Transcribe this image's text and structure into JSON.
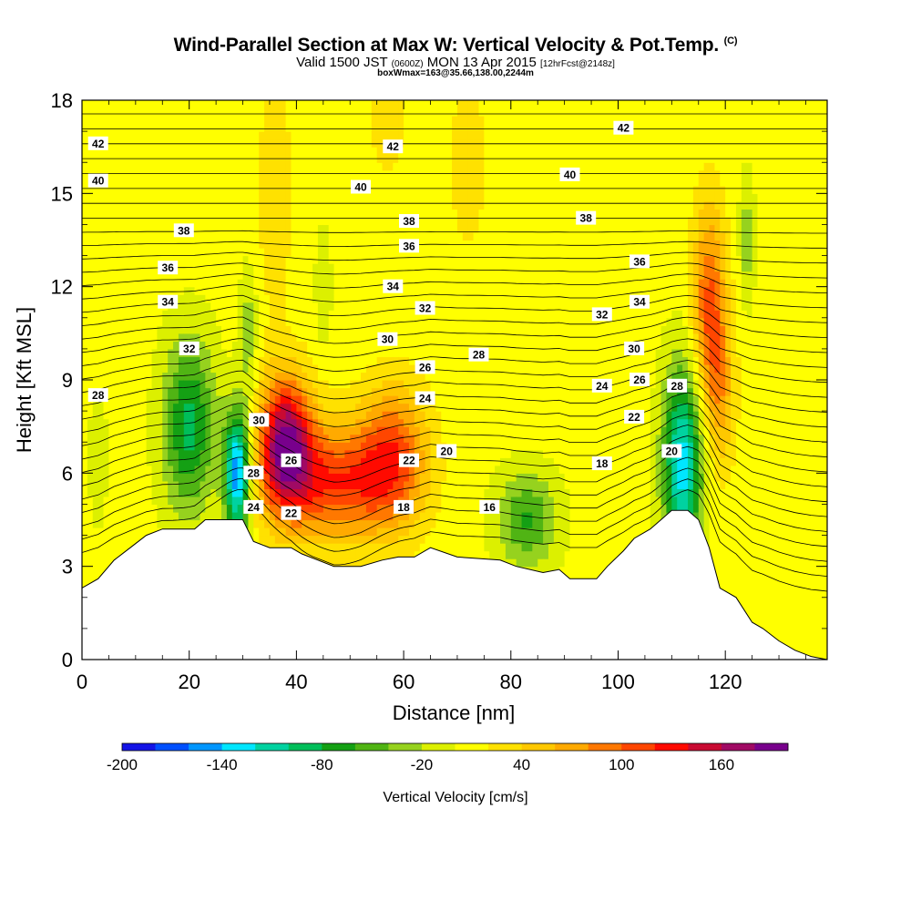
{
  "title": {
    "main": "Wind-Parallel Section at Max W: Vertical Velocity & Pot.Temp.",
    "copyright": "(C)",
    "valid_prefix": "Valid 1500 JST",
    "utc": "(0600Z)",
    "valid_date": "MON 13 Apr 2015",
    "fcst": "[12hrFcst@2148z]",
    "box_info": "boxWmax=163@35.66,138.00,2244m"
  },
  "chart_data": {
    "type": "heatmap",
    "subtype": "cross-section with potential temperature contours",
    "xlabel": "Distance [nm]",
    "ylabel": "Height [Kft MSL]",
    "xlim": [
      0,
      139
    ],
    "ylim": [
      0,
      18
    ],
    "x_ticks": [
      0,
      20,
      40,
      60,
      80,
      100,
      120
    ],
    "y_ticks": [
      0,
      3,
      6,
      9,
      12,
      15,
      18
    ],
    "colorbar": {
      "title": "Vertical Velocity [cm/s]",
      "tick_labels": [
        "-200",
        "-140",
        "-80",
        "-20",
        "40",
        "100",
        "160"
      ],
      "tick_values": [
        -200,
        -140,
        -80,
        -20,
        40,
        100,
        160
      ],
      "bins": [
        -200,
        -180,
        -160,
        -140,
        -120,
        -100,
        -80,
        -60,
        -40,
        -20,
        0,
        20,
        40,
        60,
        80,
        100,
        120,
        140,
        160,
        180
      ],
      "colors": [
        "#1414e6",
        "#0050ff",
        "#0096ff",
        "#00e6ff",
        "#00d2a0",
        "#00be5a",
        "#14a014",
        "#50b414",
        "#96d21e",
        "#dcf000",
        "#ffff00",
        "#ffe100",
        "#ffc800",
        "#ffaa00",
        "#ff7800",
        "#ff4600",
        "#ff0a00",
        "#c80a32",
        "#a00a64",
        "#78008c"
      ]
    },
    "terrain_kft": [
      [
        0,
        2.3
      ],
      [
        3,
        2.6
      ],
      [
        6,
        3.2
      ],
      [
        9,
        3.6
      ],
      [
        12,
        4.0
      ],
      [
        15,
        4.2
      ],
      [
        18,
        4.2
      ],
      [
        21,
        4.2
      ],
      [
        23,
        4.5
      ],
      [
        30,
        4.5
      ],
      [
        32,
        3.8
      ],
      [
        35,
        3.6
      ],
      [
        39,
        3.6
      ],
      [
        41,
        3.4
      ],
      [
        44,
        3.2
      ],
      [
        47,
        3.0
      ],
      [
        52,
        3.0
      ],
      [
        56,
        3.2
      ],
      [
        59,
        3.3
      ],
      [
        62,
        3.3
      ],
      [
        65,
        3.6
      ],
      [
        70,
        3.3
      ],
      [
        78,
        3.2
      ],
      [
        81,
        3.0
      ],
      [
        86,
        2.8
      ],
      [
        89,
        2.9
      ],
      [
        91,
        2.6
      ],
      [
        96,
        2.6
      ],
      [
        98,
        3.0
      ],
      [
        101,
        3.5
      ],
      [
        103,
        3.9
      ],
      [
        106,
        4.2
      ],
      [
        108,
        4.5
      ],
      [
        110,
        4.8
      ],
      [
        113,
        4.8
      ],
      [
        115,
        4.5
      ],
      [
        117,
        3.6
      ],
      [
        119,
        2.3
      ],
      [
        122,
        2.0
      ],
      [
        125,
        1.2
      ],
      [
        127,
        1.0
      ],
      [
        130,
        0.6
      ],
      [
        133,
        0.3
      ],
      [
        136,
        0.1
      ],
      [
        139,
        0.0
      ]
    ],
    "w_features": [
      {
        "x": 38,
        "y": 7.0,
        "sx": 3.5,
        "sy": 1.5,
        "w": 165
      },
      {
        "x": 47,
        "y": 5.7,
        "sx": 8,
        "sy": 1.3,
        "w": 105
      },
      {
        "x": 58,
        "y": 6.6,
        "sx": 4.5,
        "sy": 1.6,
        "w": 90
      },
      {
        "x": 117,
        "y": 11.5,
        "sx": 2.2,
        "sy": 2.2,
        "w": 95
      },
      {
        "x": 119,
        "y": 8.5,
        "sx": 2.0,
        "sy": 1.8,
        "w": 55
      },
      {
        "x": 29,
        "y": 6.0,
        "sx": 1.7,
        "sy": 1.4,
        "w": -170
      },
      {
        "x": 20,
        "y": 7.5,
        "sx": 3.5,
        "sy": 2.0,
        "w": -95
      },
      {
        "x": 112,
        "y": 6.3,
        "sx": 2.6,
        "sy": 2.2,
        "w": -140
      },
      {
        "x": 83,
        "y": 4.5,
        "sx": 4,
        "sy": 1.1,
        "w": -70
      },
      {
        "x": 31,
        "y": 10.5,
        "sx": 1.2,
        "sy": 1.5,
        "w": -40
      },
      {
        "x": 45,
        "y": 12.0,
        "sx": 1.0,
        "sy": 1.3,
        "w": -30
      },
      {
        "x": 124,
        "y": 13.5,
        "sx": 1.0,
        "sy": 1.5,
        "w": -40
      },
      {
        "x": 3,
        "y": 6.5,
        "sx": 1.2,
        "sy": 1.5,
        "w": -25
      },
      {
        "x": 36,
        "y": 15.0,
        "sx": 2.5,
        "sy": 3.0,
        "w": 25
      },
      {
        "x": 72,
        "y": 16.0,
        "sx": 3,
        "sy": 2.5,
        "w": 20
      },
      {
        "x": 57,
        "y": 17.5,
        "sx": 2.5,
        "sy": 1.5,
        "w": 25
      }
    ],
    "theta_labels": [
      {
        "label": "42",
        "x": 3,
        "y": 16.6
      },
      {
        "label": "42",
        "x": 58,
        "y": 16.5
      },
      {
        "label": "42",
        "x": 101,
        "y": 17.1
      },
      {
        "label": "40",
        "x": 3,
        "y": 15.4
      },
      {
        "label": "40",
        "x": 52,
        "y": 15.2
      },
      {
        "label": "40",
        "x": 91,
        "y": 15.6
      },
      {
        "label": "38",
        "x": 19,
        "y": 13.8
      },
      {
        "label": "38",
        "x": 61,
        "y": 14.1
      },
      {
        "label": "38",
        "x": 94,
        "y": 14.2
      },
      {
        "label": "36",
        "x": 16,
        "y": 12.6
      },
      {
        "label": "36",
        "x": 61,
        "y": 13.3
      },
      {
        "label": "36",
        "x": 104,
        "y": 12.8
      },
      {
        "label": "34",
        "x": 16,
        "y": 11.5
      },
      {
        "label": "34",
        "x": 58,
        "y": 12.0
      },
      {
        "label": "34",
        "x": 104,
        "y": 11.5
      },
      {
        "label": "32",
        "x": 20,
        "y": 10.0
      },
      {
        "label": "32",
        "x": 64,
        "y": 11.3
      },
      {
        "label": "32",
        "x": 97,
        "y": 11.1
      },
      {
        "label": "30",
        "x": 57,
        "y": 10.3
      },
      {
        "label": "30",
        "x": 103,
        "y": 10.0
      },
      {
        "label": "30",
        "x": 33,
        "y": 7.7
      },
      {
        "label": "28",
        "x": 3,
        "y": 8.5
      },
      {
        "label": "28",
        "x": 74,
        "y": 9.8
      },
      {
        "label": "28",
        "x": 111,
        "y": 8.8
      },
      {
        "label": "28",
        "x": 32,
        "y": 6.0
      },
      {
        "label": "26",
        "x": 64,
        "y": 9.4
      },
      {
        "label": "26",
        "x": 104,
        "y": 9.0
      },
      {
        "label": "26",
        "x": 39,
        "y": 6.4
      },
      {
        "label": "24",
        "x": 64,
        "y": 8.4
      },
      {
        "label": "24",
        "x": 97,
        "y": 8.8
      },
      {
        "label": "24",
        "x": 32,
        "y": 4.9
      },
      {
        "label": "22",
        "x": 103,
        "y": 7.8
      },
      {
        "label": "22",
        "x": 61,
        "y": 6.4
      },
      {
        "label": "22",
        "x": 39,
        "y": 4.7
      },
      {
        "label": "20",
        "x": 68,
        "y": 6.7
      },
      {
        "label": "20",
        "x": 110,
        "y": 6.7
      },
      {
        "label": "18",
        "x": 97,
        "y": 6.3
      },
      {
        "label": "18",
        "x": 60,
        "y": 4.9
      },
      {
        "label": "16",
        "x": 76,
        "y": 4.9
      }
    ]
  }
}
